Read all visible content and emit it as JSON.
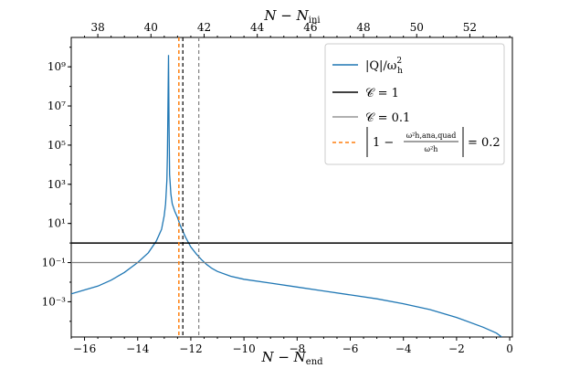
{
  "chart_data": {
    "type": "line",
    "x_bottom": {
      "label": "N − N_end",
      "lim": [
        -16.5,
        0.1
      ],
      "ticks": [
        -16,
        -14,
        -12,
        -10,
        -8,
        -6,
        -4,
        -2,
        0
      ],
      "tick_labels": [
        "−16",
        "−14",
        "−12",
        "−10",
        "−8",
        "−6",
        "−4",
        "−2",
        "0"
      ]
    },
    "x_top": {
      "label": "N − N_ini",
      "lim": [
        37.0,
        53.6
      ],
      "ticks": [
        38,
        40,
        42,
        44,
        46,
        48,
        50,
        52
      ],
      "tick_labels": [
        "38",
        "40",
        "42",
        "44",
        "46",
        "48",
        "50",
        "52"
      ]
    },
    "y": {
      "scale": "log",
      "log_lim": [
        -4.8,
        10.5
      ],
      "major_exponents": [
        -3,
        -1,
        1,
        3,
        5,
        7,
        9
      ],
      "tick_labels": [
        "10⁻³",
        "10⁻¹",
        "10¹",
        "10³",
        "10⁵",
        "10⁷",
        "10⁹"
      ]
    },
    "series": [
      {
        "name": "|Q|/ω_h²",
        "style": "line",
        "color": "#1f77b4",
        "x": [
          -16.5,
          -16.0,
          -15.5,
          -15.0,
          -14.5,
          -14.0,
          -13.6,
          -13.3,
          -13.1,
          -13.0,
          -12.95,
          -12.9,
          -12.88,
          -12.86,
          -12.84,
          -12.82,
          -12.8,
          -12.75,
          -12.7,
          -12.6,
          -12.5,
          -12.4,
          -12.3,
          -12.2,
          -12.1,
          -12.0,
          -11.8,
          -11.6,
          -11.4,
          -11.2,
          -11.0,
          -10.5,
          -10.0,
          -9.0,
          -8.0,
          -7.0,
          -6.0,
          -5.0,
          -4.0,
          -3.0,
          -2.0,
          -1.0,
          -0.5,
          -0.3
        ],
        "y_log10": [
          -2.6,
          -2.4,
          -2.2,
          -1.9,
          -1.5,
          -1.0,
          -0.5,
          0.1,
          0.7,
          1.4,
          2.0,
          3.2,
          4.5,
          7.0,
          9.6,
          6.0,
          3.5,
          2.5,
          2.0,
          1.6,
          1.3,
          0.9,
          0.6,
          0.3,
          0.05,
          -0.2,
          -0.55,
          -0.85,
          -1.1,
          -1.3,
          -1.45,
          -1.7,
          -1.85,
          -2.05,
          -2.25,
          -2.45,
          -2.65,
          -2.85,
          -3.1,
          -3.4,
          -3.8,
          -4.3,
          -4.6,
          -4.8
        ]
      },
      {
        "name": "𝒞 = 1",
        "style": "hline",
        "color": "#000000",
        "y_log10": 0
      },
      {
        "name": "𝒞 = 0.1",
        "style": "hline",
        "color": "#808080",
        "y_log10": -1
      },
      {
        "name": "| 1 − ω²_h,ana,quad / ω²_h | = 0.2",
        "style": "vline",
        "color": "#ff7f0e",
        "x": -12.45
      }
    ],
    "extra_vlines": [
      {
        "x": -12.3,
        "color": "#000000"
      },
      {
        "x": -11.7,
        "color": "#808080"
      }
    ],
    "legend": {
      "placement": "top-right",
      "entries": [
        {
          "main": "|Q|/ω",
          "sup": "2",
          "sub": "h",
          "tail": ""
        },
        {
          "main": "𝒞 = 1",
          "sup": "",
          "sub": "",
          "tail": ""
        },
        {
          "main": "𝒞 = 0.1",
          "sup": "",
          "sub": "",
          "tail": ""
        },
        {
          "main": "1 − ",
          "num": "ω²h,ana,quad",
          "den": "ω²h",
          "tail": "= 0.2"
        }
      ]
    }
  }
}
